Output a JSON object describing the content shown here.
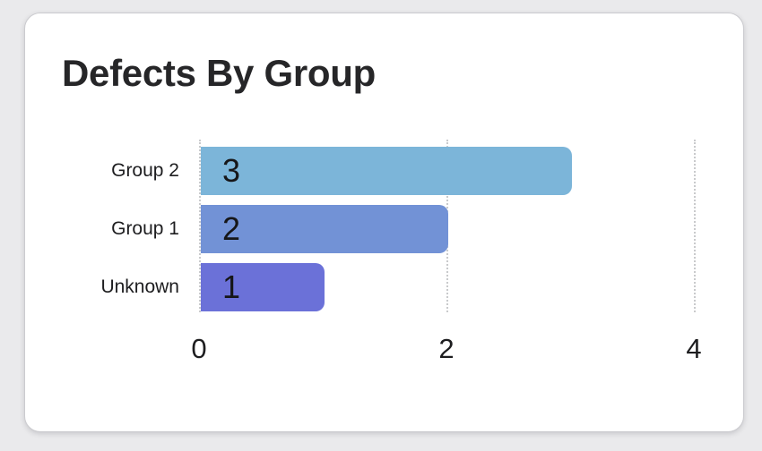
{
  "page": {
    "background_color": "#eaeaec",
    "card_color": "#ffffff"
  },
  "chart_data": {
    "type": "bar",
    "orientation": "horizontal",
    "title": "Defects By Group",
    "categories": [
      "Group 2",
      "Group 1",
      "Unknown"
    ],
    "values": [
      3,
      2,
      1
    ],
    "bar_colors": [
      "#7cb5d9",
      "#7292d6",
      "#6b71d8"
    ],
    "x_ticks": [
      0,
      2,
      4
    ],
    "xlim": [
      0,
      4.3
    ],
    "xlabel": "",
    "ylabel": "",
    "legend": "none",
    "grid": "vertical-dotted",
    "gridline_color": "#c9cacc",
    "value_label_position": "inside-start",
    "text_color": "#1d1d1f"
  }
}
